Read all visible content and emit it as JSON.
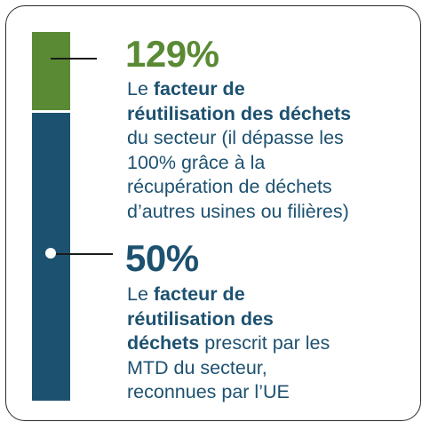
{
  "chart_data": {
    "type": "bar",
    "title": "",
    "xlabel": "",
    "ylabel": "",
    "categories": [
      "facteur de réutilisation des déchets du secteur",
      "facteur de réutilisation des déchets prescrit par les MTD"
    ],
    "values": [
      129,
      50
    ],
    "unit": "%",
    "ylim": [
      0,
      129
    ],
    "grid": false,
    "colors": {
      "sector": "#5a8a34",
      "mtd": "#1d5170"
    },
    "annotations": [
      {
        "value_label": "129%",
        "lines": [
          [
            {
              "t": "Le ",
              "b": false
            },
            {
              "t": "facteur de",
              "b": true
            }
          ],
          [
            {
              "t": "réutilisation des déchets",
              "b": true
            }
          ],
          [
            {
              "t": "du secteur (il dépasse les",
              "b": false
            }
          ],
          [
            {
              "t": "100% grâce à la",
              "b": false
            }
          ],
          [
            {
              "t": "récupération de déchets",
              "b": false
            }
          ],
          [
            {
              "t": "d’autres usines ou filières)",
              "b": false
            }
          ]
        ]
      },
      {
        "value_label": "50%",
        "lines": [
          [
            {
              "t": "Le ",
              "b": false
            },
            {
              "t": "facteur de",
              "b": true
            }
          ],
          [
            {
              "t": "réutilisation des",
              "b": true
            }
          ],
          [
            {
              "t": "déchets",
              "b": true
            },
            {
              "t": " prescrit par les",
              "b": false
            }
          ],
          [
            {
              "t": "MTD du secteur,",
              "b": false
            }
          ],
          [
            {
              "t": "reconnues par l’UE",
              "b": false
            }
          ]
        ]
      }
    ]
  }
}
